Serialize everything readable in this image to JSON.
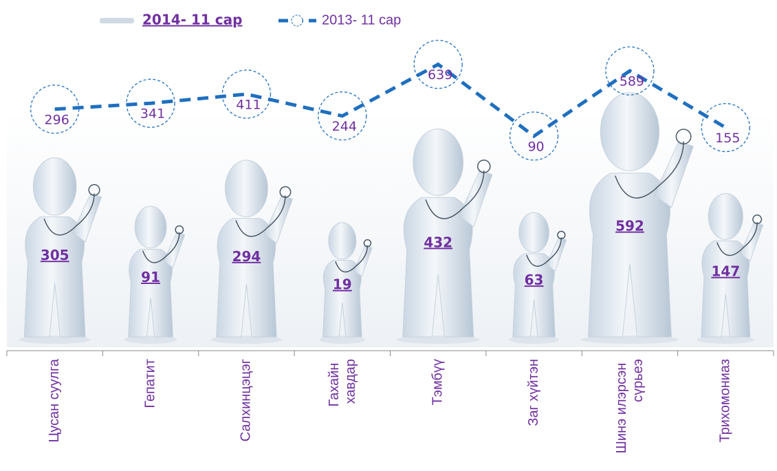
{
  "chart_data": {
    "type": "pictograph-line",
    "categories": [
      "Цусан суулга",
      "Гепатит",
      "Салхинцэцэг",
      "Гахайн хавдар",
      "Тэмбүү",
      "Заг хүйтэн",
      "Шинэ илэрсэн сүрьеэ",
      "Трихомониаз"
    ],
    "series": [
      {
        "name": "2014- 11 сар",
        "color": "#7030a0",
        "values": [
          305,
          91,
          294,
          19,
          432,
          63,
          592,
          147
        ]
      },
      {
        "name": "2013- 11 сар",
        "color": "#1f6fbf",
        "values": [
          296,
          341,
          411,
          244,
          639,
          90,
          589,
          155
        ]
      }
    ]
  }
}
